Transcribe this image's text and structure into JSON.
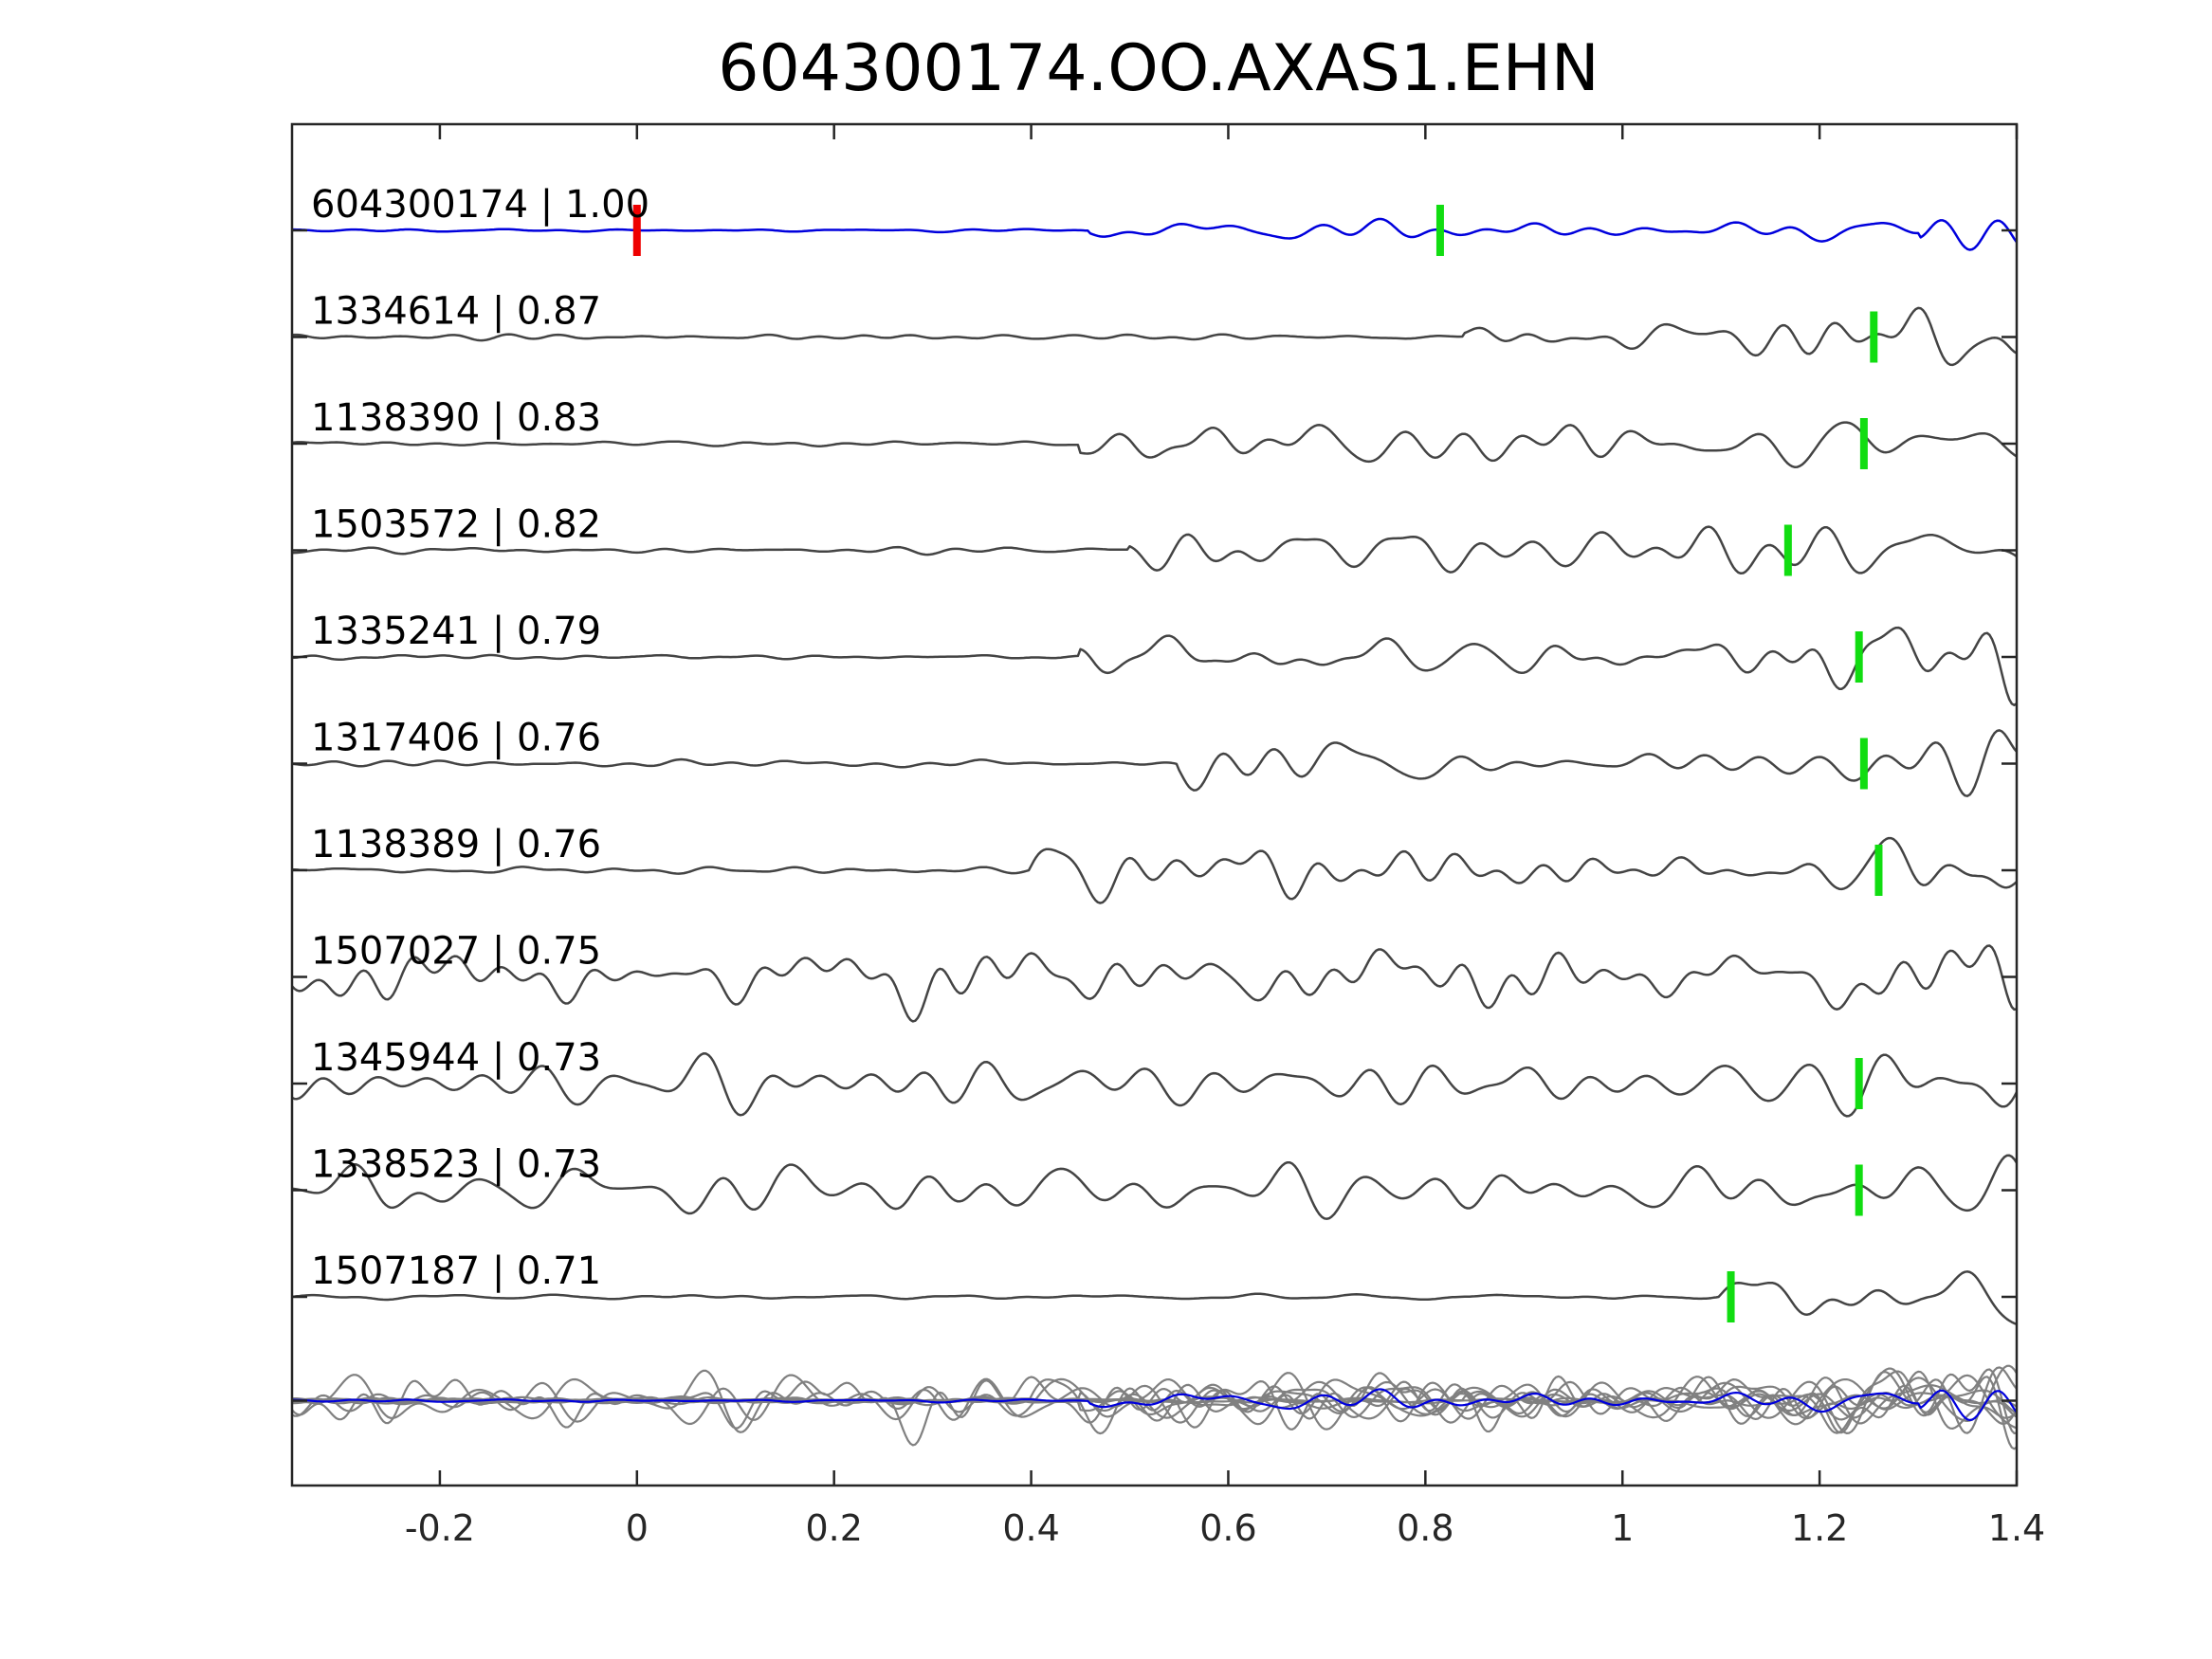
{
  "chart_data": {
    "type": "line",
    "title": "604300174.OO.AXAS1.EHN",
    "xlabel": "",
    "ylabel": "",
    "xlim": [
      -0.35,
      1.4
    ],
    "x_ticks": [
      {
        "value": -0.2,
        "label": "-0.2"
      },
      {
        "value": 0,
        "label": "0"
      },
      {
        "value": 0.2,
        "label": "0.2"
      },
      {
        "value": 0.4,
        "label": "0.4"
      },
      {
        "value": 0.6,
        "label": "0.6"
      },
      {
        "value": 0.8,
        "label": "0.8"
      },
      {
        "value": 1,
        "label": "1"
      },
      {
        "value": 1.2,
        "label": "1.2"
      },
      {
        "value": 1.4,
        "label": "1.4"
      }
    ],
    "grid": false,
    "template_color": "#0000dd",
    "trace_color": "#444444",
    "overlay_color": "#808080",
    "origin_marker_color": "#ee0000",
    "pick_marker_color": "#11dd11",
    "traces": [
      {
        "id": "604300174",
        "cc": "1.00",
        "label": "604300174 | 1.00",
        "template": true,
        "origin_marker": 0,
        "pick": 0.815,
        "onset": 0.46,
        "seed": 1
      },
      {
        "id": "1334614",
        "cc": "0.87",
        "label": "1334614 | 0.87",
        "template": false,
        "pick": 1.255,
        "onset": 0.84,
        "seed": 2
      },
      {
        "id": "1138390",
        "cc": "0.83",
        "label": "1138390 | 0.83",
        "template": false,
        "pick": 1.245,
        "onset": 0.45,
        "seed": 3
      },
      {
        "id": "1503572",
        "cc": "0.82",
        "label": "1503572 | 0.82",
        "template": false,
        "pick": 1.168,
        "onset": 0.5,
        "seed": 4
      },
      {
        "id": "1335241",
        "cc": "0.79",
        "label": "1335241 | 0.79",
        "template": false,
        "pick": 1.24,
        "onset": 0.45,
        "seed": 5
      },
      {
        "id": "1317406",
        "cc": "0.76",
        "label": "1317406 | 0.76",
        "template": false,
        "pick": 1.245,
        "onset": 0.55,
        "seed": 6
      },
      {
        "id": "1138389",
        "cc": "0.76",
        "label": "1138389 | 0.76",
        "template": false,
        "pick": 1.26,
        "onset": 0.4,
        "seed": 7
      },
      {
        "id": "1507027",
        "cc": "0.75",
        "label": "1507027 | 0.75",
        "template": false,
        "pick": null,
        "onset": -0.35,
        "seed": 8
      },
      {
        "id": "1345944",
        "cc": "0.73",
        "label": "1345944 | 0.73",
        "template": false,
        "pick": 1.24,
        "onset": -0.35,
        "seed": 9
      },
      {
        "id": "1338523",
        "cc": "0.73",
        "label": "1338523 | 0.73",
        "template": false,
        "pick": 1.24,
        "onset": -0.2,
        "seed": 10
      },
      {
        "id": "1507187",
        "cc": "0.71",
        "label": "1507187 | 0.71",
        "template": false,
        "pick": 1.11,
        "onset": 1.1,
        "seed": 11
      }
    ],
    "overlay": {
      "description": "stack of all traces superimposed",
      "template_on_top": true
    }
  }
}
